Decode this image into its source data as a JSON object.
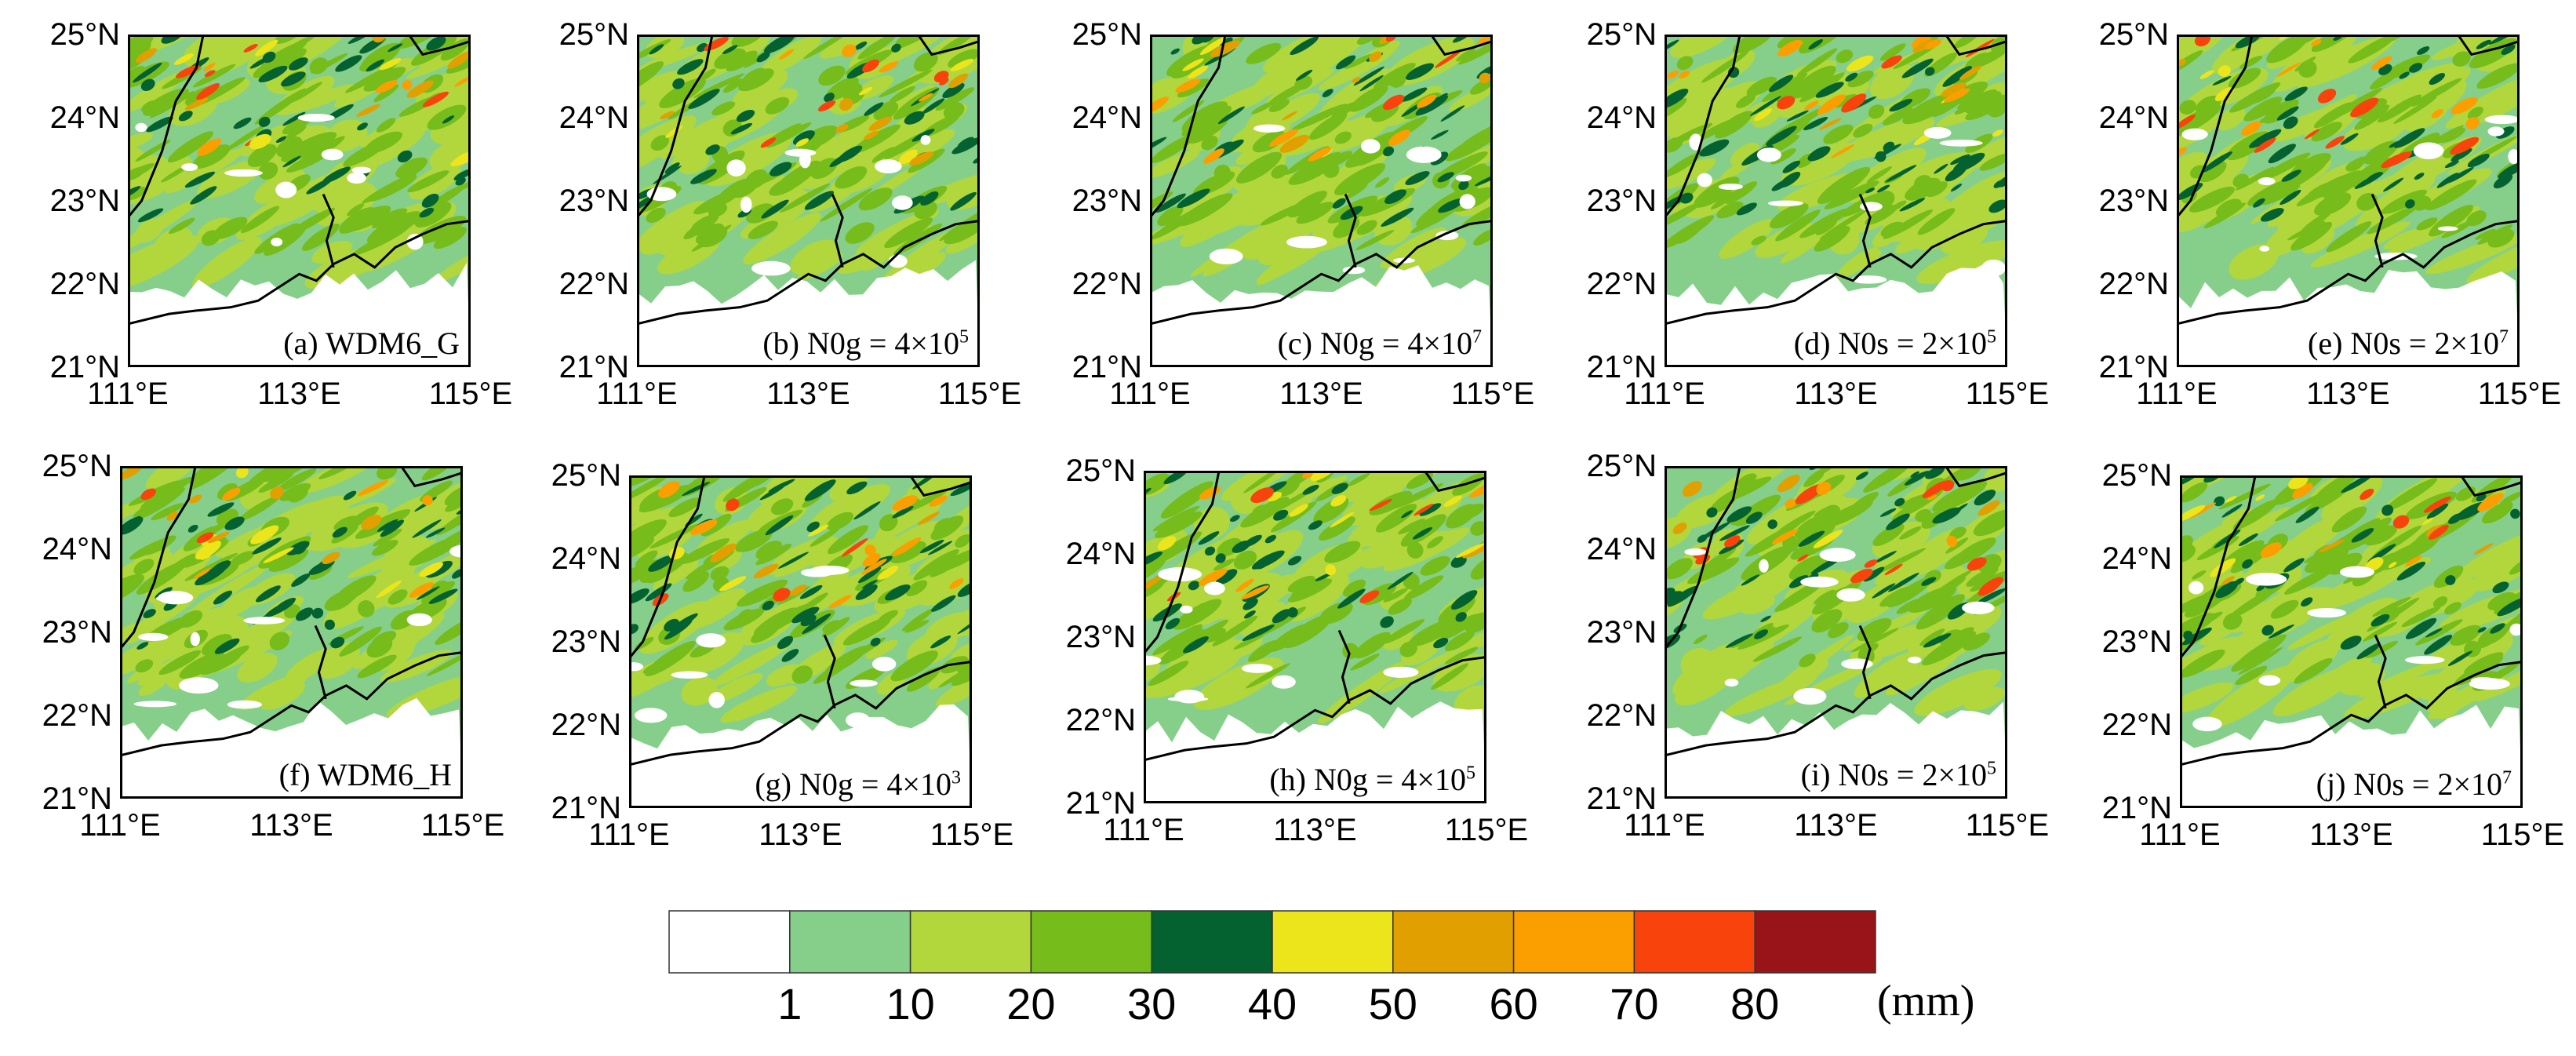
{
  "figure": {
    "y_ticks": [
      "25°N",
      "24°N",
      "23°N",
      "22°N",
      "21°N"
    ],
    "x_ticks": [
      "111°E",
      "113°E",
      "115°E"
    ],
    "panels": [
      {
        "id": "a",
        "label": "(a) WDM6_G"
      },
      {
        "id": "b",
        "label": "(b) N0g = 4×10",
        "exp": "5"
      },
      {
        "id": "c",
        "label": "(c) N0g = 4×10",
        "exp": "7"
      },
      {
        "id": "d",
        "label": "(d) N0s = 2×10",
        "exp": "5"
      },
      {
        "id": "e",
        "label": "(e) N0s = 2×10",
        "exp": "7"
      },
      {
        "id": "f",
        "label": "(f) WDM6_H"
      },
      {
        "id": "g",
        "label": "(g) N0g = 4×10",
        "exp": "3"
      },
      {
        "id": "h",
        "label": "(h) N0g = 4×10",
        "exp": "5"
      },
      {
        "id": "i",
        "label": "(i) N0s = 2×10",
        "exp": "5"
      },
      {
        "id": "j",
        "label": "(j) N0s = 2×10",
        "exp": "7"
      }
    ]
  },
  "colorbar": {
    "colors": [
      "#ffffff",
      "#86cf8a",
      "#b2d73c",
      "#76bc1a",
      "#036230",
      "#ede51b",
      "#e1a000",
      "#fb9f00",
      "#f9430d",
      "#981419"
    ],
    "labels": [
      "1",
      "10",
      "20",
      "30",
      "40",
      "50",
      "60",
      "70",
      "80"
    ],
    "unit": "(mm)"
  }
}
